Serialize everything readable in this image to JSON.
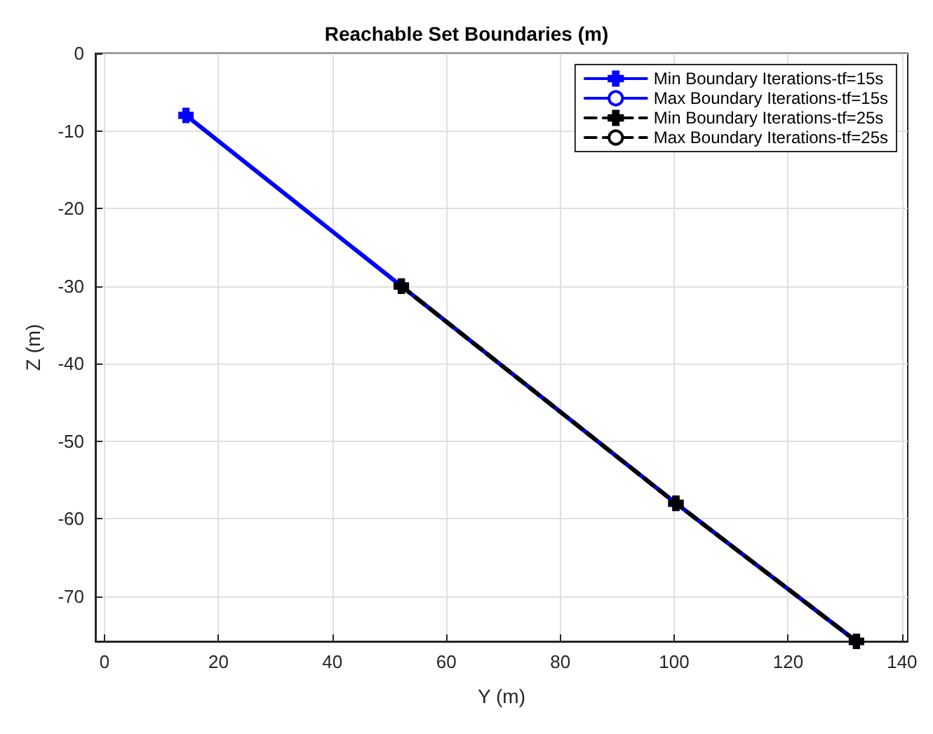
{
  "chart_data": {
    "type": "line",
    "title": "Reachable Set Boundaries (m)",
    "xlabel": "Y (m)",
    "ylabel": "Z (m)",
    "xlim": [
      -1.6,
      141
    ],
    "xticks": [
      0,
      20,
      40,
      60,
      80,
      100,
      120,
      140
    ],
    "ylim": [
      -75.8,
      0
    ],
    "yticks": [
      -70,
      -60,
      -50,
      -40,
      -30,
      -20,
      -10,
      0
    ],
    "grid": true,
    "legend": "top right",
    "series": [
      {
        "name": "Min Boundary Iterations-tf=15s",
        "color": "#0000ff",
        "marker": "cross",
        "line_style": "solid",
        "x": [
          14.3,
          52.1,
          100.3,
          132
        ],
        "values": [
          -8,
          -30,
          -58,
          -75.8
        ]
      },
      {
        "name": "Max Boundary Iterations-tf=15s",
        "color": "#0000ff",
        "marker": "circle",
        "line_style": "solid"
      },
      {
        "name": "Min Boundary Iterations-tf=25s",
        "color": "#000000",
        "marker": "cross",
        "line_style": "dashed",
        "x": [
          52.1,
          100.3,
          132
        ],
        "values": [
          -30,
          -58,
          -75.8
        ]
      },
      {
        "name": "Max Boundary Iterations-tf=25s",
        "color": "#000000",
        "marker": "circle",
        "line_style": "dashed"
      }
    ]
  }
}
